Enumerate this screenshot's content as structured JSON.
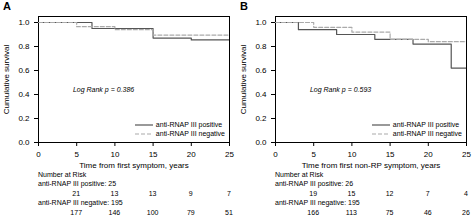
{
  "chart_data": [
    {
      "type": "step",
      "title": "A",
      "x_label": "Time from first symptom, years",
      "y_label": "Cumulative survival",
      "xlim": [
        0,
        25
      ],
      "ylim": [
        0.0,
        1.05
      ],
      "xticks": [
        0,
        5,
        10,
        15,
        20,
        25
      ],
      "yticks": [
        {
          "value": 0.0,
          "label": "0.0"
        },
        0.2,
        0.4,
        0.6,
        0.8,
        {
          "value": 1.0,
          "label": "1.0"
        }
      ],
      "legend": "lower right",
      "series": [
        {
          "name": "anti-RNAP III positive",
          "color": "#555555",
          "line_style": "solid",
          "x": [
            0,
            7,
            7,
            15,
            15,
            20,
            20,
            25
          ],
          "values": [
            1.0,
            1.0,
            0.95,
            0.95,
            0.87,
            0.87,
            0.855,
            0.855
          ]
        },
        {
          "name": "anti-RNAP III negative",
          "color": "#aaaaaa",
          "line_style": "dashed",
          "x": [
            0,
            5,
            5,
            10,
            10,
            15,
            15,
            25
          ],
          "values": [
            1.0,
            1.0,
            0.965,
            0.965,
            0.94,
            0.94,
            0.895,
            0.895
          ]
        }
      ],
      "annotations": [
        {
          "text": "Log Rank p = 0.386",
          "x": 4.5,
          "y": 0.42
        }
      ],
      "risk_table": {
        "header": "Number at Risk",
        "times": [
          5,
          10,
          15,
          20,
          25
        ],
        "rows": [
          {
            "label": "anti-RNAP III positive: 25",
            "values": [
              21,
              13,
              13,
              9,
              7
            ]
          },
          {
            "label": "anti-RNAP III negative: 195",
            "values": [
              177,
              146,
              100,
              79,
              51
            ]
          }
        ]
      }
    },
    {
      "type": "step",
      "title": "B",
      "x_label": "Time from first non-RP symptom, years",
      "y_label": "Cumulative survival",
      "xlim": [
        0,
        25
      ],
      "ylim": [
        0.0,
        1.05
      ],
      "xticks": [
        0,
        5,
        10,
        15,
        20,
        25
      ],
      "yticks": [
        {
          "value": 0.0,
          "label": "0.0"
        },
        0.2,
        0.4,
        0.6,
        0.8,
        {
          "value": 1.0,
          "label": "1.0"
        }
      ],
      "legend": "lower right",
      "series": [
        {
          "name": "anti-RNAP III positive",
          "color": "#555555",
          "line_style": "solid",
          "x": [
            0,
            3,
            3,
            8,
            8,
            13,
            13,
            18,
            18,
            23,
            23,
            25
          ],
          "values": [
            1.0,
            1.0,
            0.94,
            0.94,
            0.9,
            0.9,
            0.86,
            0.86,
            0.82,
            0.82,
            0.62,
            0.62
          ]
        },
        {
          "name": "anti-RNAP III negative",
          "color": "#aaaaaa",
          "line_style": "dashed",
          "x": [
            0,
            5,
            5,
            10,
            10,
            15,
            15,
            20,
            20,
            25
          ],
          "values": [
            1.0,
            1.0,
            0.96,
            0.96,
            0.92,
            0.92,
            0.86,
            0.86,
            0.84,
            0.84
          ]
        }
      ],
      "annotations": [
        {
          "text": "Log Rank p = 0.593",
          "x": 4.5,
          "y": 0.42
        }
      ],
      "risk_table": {
        "header": "Number at Risk",
        "times": [
          5,
          10,
          15,
          20,
          25
        ],
        "rows": [
          {
            "label": "anti-RNAP III positive: 26",
            "values": [
              19,
              15,
              12,
              7,
              4
            ]
          },
          {
            "label": "anti-RNAP III negative: 195",
            "values": [
              166,
              113,
              75,
              46,
              26
            ]
          }
        ]
      }
    }
  ]
}
